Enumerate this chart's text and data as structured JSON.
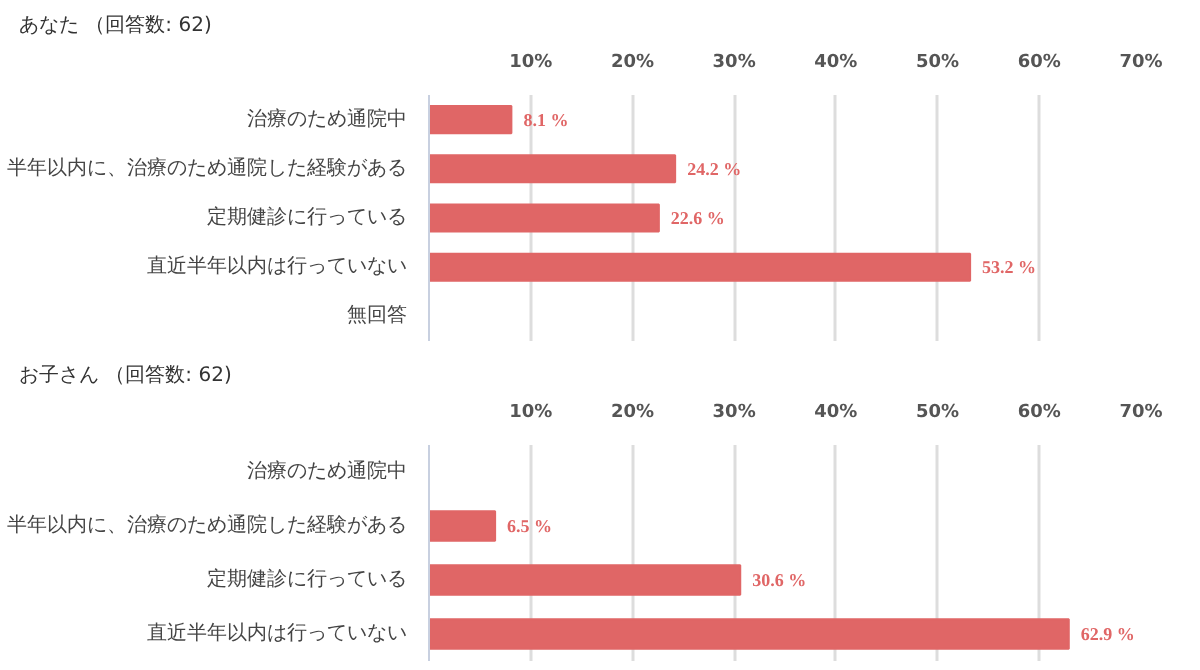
{
  "chart_data": [
    {
      "type": "bar",
      "orientation": "horizontal",
      "title": "あなた （回答数: 62)",
      "categories": [
        "治療のため通院中",
        "半年以内に、治療のため通院した経験がある",
        "定期健診に行っている",
        "直近半年以内は行っていない",
        "無回答"
      ],
      "values": [
        8.1,
        24.2,
        22.6,
        53.2,
        null
      ],
      "value_labels": [
        "8.1 %",
        "24.2 %",
        "22.6 %",
        "53.2 %",
        null
      ],
      "color": "#e06666",
      "xlim": [
        0,
        70
      ],
      "xticks": [
        {
          "value": 10,
          "label": "10%"
        },
        {
          "value": 20,
          "label": "20%"
        },
        {
          "value": 30,
          "label": "30%"
        },
        {
          "value": 40,
          "label": "40%"
        },
        {
          "value": 50,
          "label": "50%"
        },
        {
          "value": 60,
          "label": "60%"
        },
        {
          "value": 70,
          "label": "70%"
        }
      ],
      "grid": "x"
    },
    {
      "type": "bar",
      "orientation": "horizontal",
      "title": "お子さん （回答数: 62)",
      "categories": [
        "治療のため通院中",
        "半年以内に、治療のため通院した経験がある",
        "定期健診に行っている",
        "直近半年以内は行っていない"
      ],
      "values": [
        null,
        6.5,
        30.6,
        62.9
      ],
      "value_labels": [
        null,
        "6.5 %",
        "30.6 %",
        "62.9 %"
      ],
      "color": "#e06666",
      "xlim": [
        0,
        70
      ],
      "xticks": [
        {
          "value": 10,
          "label": "10%"
        },
        {
          "value": 20,
          "label": "20%"
        },
        {
          "value": 30,
          "label": "30%"
        },
        {
          "value": 40,
          "label": "40%"
        },
        {
          "value": 50,
          "label": "50%"
        },
        {
          "value": 60,
          "label": "60%"
        },
        {
          "value": 70,
          "label": "70%"
        }
      ],
      "grid": "x"
    }
  ]
}
